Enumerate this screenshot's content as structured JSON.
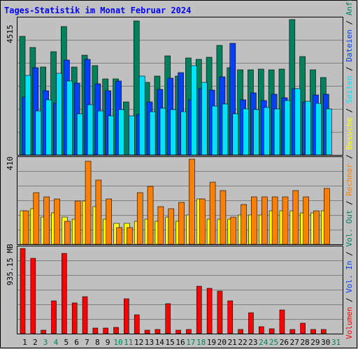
{
  "colors": {
    "background": "#c0c0c0",
    "title": "#0000ff",
    "anfragen": "#00805c",
    "dateien": "#0040ff",
    "seiten": "#00e0ff",
    "besuche": "#ffff00",
    "rechner": "#ff8000",
    "volumen": "#ff0000",
    "weekday_label": "#000000",
    "weekend_label": "#00805c",
    "sep_out": "#0000ff",
    "sep_in": "#ff0000"
  },
  "chart_data": {
    "type": "bar",
    "title": "Tages-Statistik im Monat Februar 2024",
    "categories": [
      "1",
      "2",
      "3",
      "4",
      "5",
      "6",
      "7",
      "8",
      "9",
      "10",
      "11",
      "12",
      "13",
      "14",
      "15",
      "16",
      "17",
      "18",
      "19",
      "20",
      "21",
      "22",
      "23",
      "24",
      "25",
      "26",
      "27",
      "28",
      "29",
      "30",
      "31"
    ],
    "weekend_days": [
      3,
      4,
      10,
      11,
      17,
      18,
      24,
      25,
      31
    ],
    "panels": {
      "requests": {
        "ymax_label": "4515",
        "ymax": 4515,
        "series": [
          {
            "name": "Anfragen",
            "values": [
              3960,
              3590,
              2940,
              3450,
              4290,
              2940,
              3320,
              2990,
              2530,
              2530,
              1760,
              4470,
              2410,
              2630,
              3310,
              2620,
              3230,
              3200,
              3260,
              3650,
              2900,
              2830,
              2840,
              2860,
              2830,
              2860,
              4510,
              3270,
              2840,
              2590,
              0
            ]
          },
          {
            "name": "Dateien",
            "values": [
              1930,
              2920,
              2150,
              1720,
              3160,
              2390,
              3190,
              2370,
              2150,
              2460,
              0,
              1360,
              1770,
              2180,
              2570,
              2740,
              1830,
              2220,
              2170,
              2610,
              3730,
              1830,
              2060,
              1810,
              2020,
              1900,
              2220,
              1770,
              2010,
              2030,
              0
            ]
          },
          {
            "name": "Seiten",
            "values": [
              2660,
              1470,
              1850,
              2730,
              2470,
              1380,
              1680,
              1460,
              1300,
              1510,
              1300,
              2620,
              1440,
              1550,
              1520,
              1450,
              2980,
              2430,
              1620,
              1710,
              1380,
              1540,
              1520,
              1590,
              1540,
              1810,
              2200,
              1790,
              1720,
              1530,
              0
            ]
          }
        ]
      },
      "visits": {
        "ymax_label": "410",
        "ymax": 410,
        "series": [
          {
            "name": "Besuche",
            "values": [
              160,
              170,
              130,
              150,
              130,
              120,
              210,
              180,
              120,
              100,
              100,
              110,
              120,
              110,
              130,
              110,
              140,
              220,
              120,
              120,
              120,
              140,
              140,
              140,
              160,
              160,
              160,
              150,
              150,
              160,
              0
            ]
          },
          {
            "name": "Rechner",
            "values": [
              160,
              250,
              230,
              220,
              110,
              210,
              400,
              310,
              220,
              80,
              80,
              250,
              280,
              180,
              170,
              200,
              410,
              220,
              300,
              260,
              130,
              190,
              230,
              230,
              230,
              230,
              260,
              230,
              160,
              270,
              0
            ]
          }
        ]
      },
      "volume": {
        "ymax_label": "935.15 MB",
        "ymax": 935.15,
        "series": [
          {
            "name": "Volumen",
            "values": [
              935.15,
              825,
              40,
              360,
              880,
              335,
              405,
              60,
              60,
              70,
              385,
              210,
              40,
              45,
              330,
              35,
              45,
              520,
              495,
              470,
              360,
              45,
              230,
              75,
              55,
              260,
              45,
              115,
              45,
              45,
              0
            ]
          }
        ]
      }
    }
  },
  "legend_right": [
    "Anfragen",
    "/",
    "Dateien",
    "/",
    "Seiten",
    "/",
    "Besuche",
    "/",
    "Rechner",
    "/",
    "Vol. Out",
    "/",
    "Vol. In",
    "/",
    "Volumen"
  ]
}
